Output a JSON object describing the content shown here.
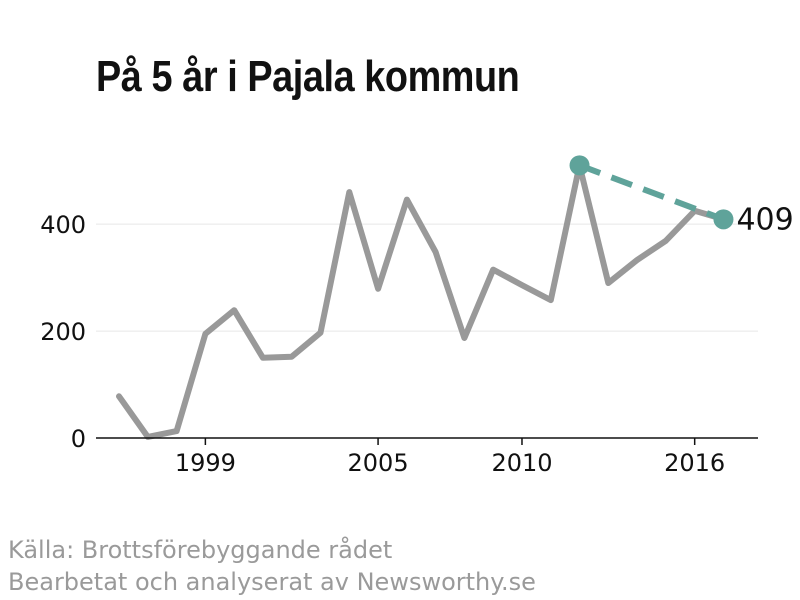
{
  "title": "På 5 år i Pajala kommun",
  "source": {
    "line1": "Källa: Brottsförebyggande rådet",
    "line2": "Bearbetat och analyserat av Newsworthy.se"
  },
  "colors": {
    "series": "#999999",
    "highlight": "#5fa39a",
    "grid": "#e6e6e6",
    "axis": "#111111"
  },
  "chart_data": {
    "type": "line",
    "title": "På 5 år i Pajala kommun",
    "x": [
      1996,
      1997,
      1998,
      1999,
      2000,
      2001,
      2002,
      2003,
      2004,
      2005,
      2006,
      2007,
      2008,
      2009,
      2010,
      2011,
      2012,
      2013,
      2014,
      2015,
      2016,
      2017
    ],
    "series": [
      {
        "values": [
          78,
          2,
          13,
          195,
          239,
          150,
          152,
          197,
          460,
          279,
          446,
          348,
          187,
          315,
          286,
          258,
          510,
          290,
          333,
          369,
          425,
          409
        ]
      }
    ],
    "highlight": {
      "from": {
        "x": 2012,
        "y": 510
      },
      "to": {
        "x": 2017,
        "y": 409
      },
      "style": "dashed"
    },
    "end_label": "409",
    "xticks": [
      1999,
      2005,
      2010,
      2016
    ],
    "xtick_labels": [
      "1999",
      "2005",
      "2010",
      "2016"
    ],
    "yticks": [
      0,
      200,
      400
    ],
    "ytick_labels": [
      "0",
      "200",
      "400"
    ],
    "ylim": [
      0,
      520
    ],
    "xlim": [
      1995.2,
      2018.2
    ],
    "grid": true,
    "xlabel": "",
    "ylabel": ""
  }
}
